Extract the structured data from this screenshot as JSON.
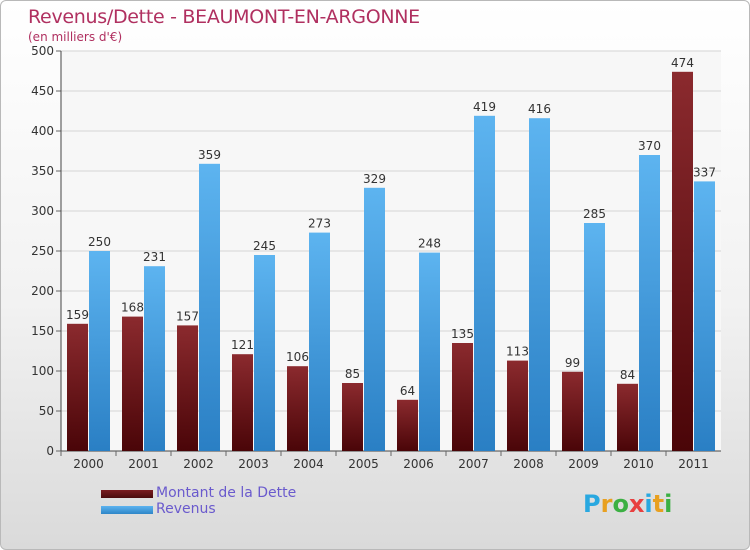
{
  "chart_data": {
    "type": "bar",
    "title": "Revenus/Dette - BEAUMONT-EN-ARGONNE",
    "subtitle": "(en milliers d'€)",
    "categories": [
      "2000",
      "2001",
      "2002",
      "2003",
      "2004",
      "2005",
      "2006",
      "2007",
      "2008",
      "2009",
      "2010",
      "2011"
    ],
    "series": [
      {
        "name": "Montant de la Dette",
        "color": "#7a1c20",
        "values": [
          159,
          168,
          157,
          121,
          106,
          85,
          64,
          135,
          113,
          99,
          84,
          474
        ]
      },
      {
        "name": "Revenus",
        "color": "#4a9fe0",
        "values": [
          250,
          231,
          359,
          245,
          273,
          329,
          248,
          419,
          416,
          285,
          370,
          337
        ]
      }
    ],
    "yticks": [
      0,
      50,
      100,
      150,
      200,
      250,
      300,
      350,
      400,
      450,
      500
    ],
    "ylim": [
      0,
      500
    ],
    "xlabel": "",
    "ylabel": "",
    "legend_position": "bottom-left"
  },
  "logo": {
    "letters": [
      "P",
      "r",
      "o",
      "x",
      "i",
      "t",
      "i"
    ],
    "colors": [
      "#29a8e0",
      "#e8a020",
      "#3cb043",
      "#e84040",
      "#29a8e0",
      "#e8a020",
      "#3cb043"
    ]
  }
}
